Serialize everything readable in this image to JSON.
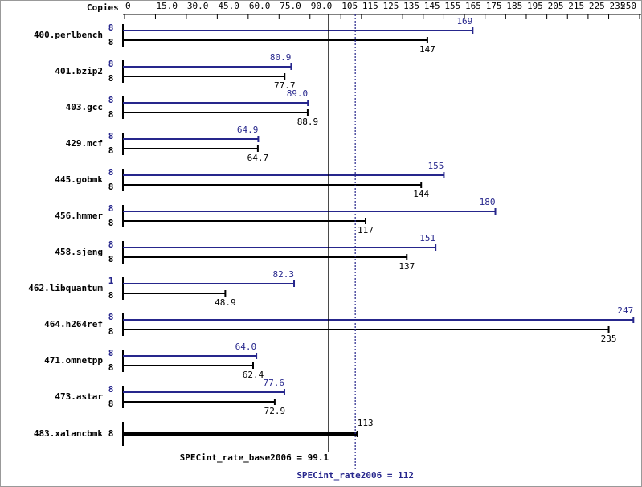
{
  "chart_data": {
    "type": "bar",
    "orientation": "horizontal",
    "x_label": "Copies",
    "categories": [
      "400.perlbench",
      "401.bzip2",
      "403.gcc",
      "429.mcf",
      "445.gobmk",
      "456.hmmer",
      "458.sjeng",
      "462.libquantum",
      "464.h264ref",
      "471.omnetpp",
      "473.astar",
      "483.xalancbmk"
    ],
    "xlim": [
      0,
      250
    ],
    "xticks": [
      0,
      {
        "value": 15,
        "label": "15.0"
      },
      {
        "value": 30,
        "label": "30.0"
      },
      {
        "value": 45,
        "label": "45.0"
      },
      {
        "value": 60,
        "label": "60.0"
      },
      {
        "value": 75,
        "label": "75.0"
      },
      {
        "value": 90,
        "label": "90.0"
      },
      105,
      115,
      125,
      135,
      145,
      155,
      165,
      175,
      185,
      195,
      205,
      215,
      225,
      235,
      250
    ],
    "series": [
      {
        "color": "#26268c",
        "copies": [
          8,
          8,
          8,
          8,
          8,
          8,
          8,
          1,
          8,
          8,
          8,
          null
        ],
        "values": [
          169,
          80.9,
          89.0,
          64.9,
          155,
          180,
          151,
          82.3,
          247,
          64.0,
          77.6,
          null
        ],
        "value_labels": [
          "169",
          "80.9",
          "89.0",
          "64.9",
          "155",
          "180",
          "151",
          "82.3",
          "247",
          "64.0",
          "77.6",
          null
        ]
      },
      {
        "color": "#000000",
        "copies": [
          8,
          8,
          8,
          8,
          8,
          8,
          8,
          8,
          8,
          8,
          8,
          8
        ],
        "values": [
          147,
          77.7,
          88.9,
          64.7,
          144,
          117,
          137,
          48.9,
          235,
          62.4,
          72.9,
          113
        ],
        "value_labels": [
          "147",
          "77.7",
          "88.9",
          "64.7",
          "144",
          "117",
          "137",
          "48.9",
          "235",
          "62.4",
          "72.9",
          "113"
        ]
      }
    ],
    "reference_lines": [
      {
        "value": 99.1,
        "label": "SPECint_rate_base2006 = 99.1",
        "color": "#000000",
        "style": "solid"
      },
      {
        "value": 112,
        "label": "SPECint_rate2006 = 112",
        "color": "#26268c",
        "style": "dotted"
      }
    ]
  }
}
